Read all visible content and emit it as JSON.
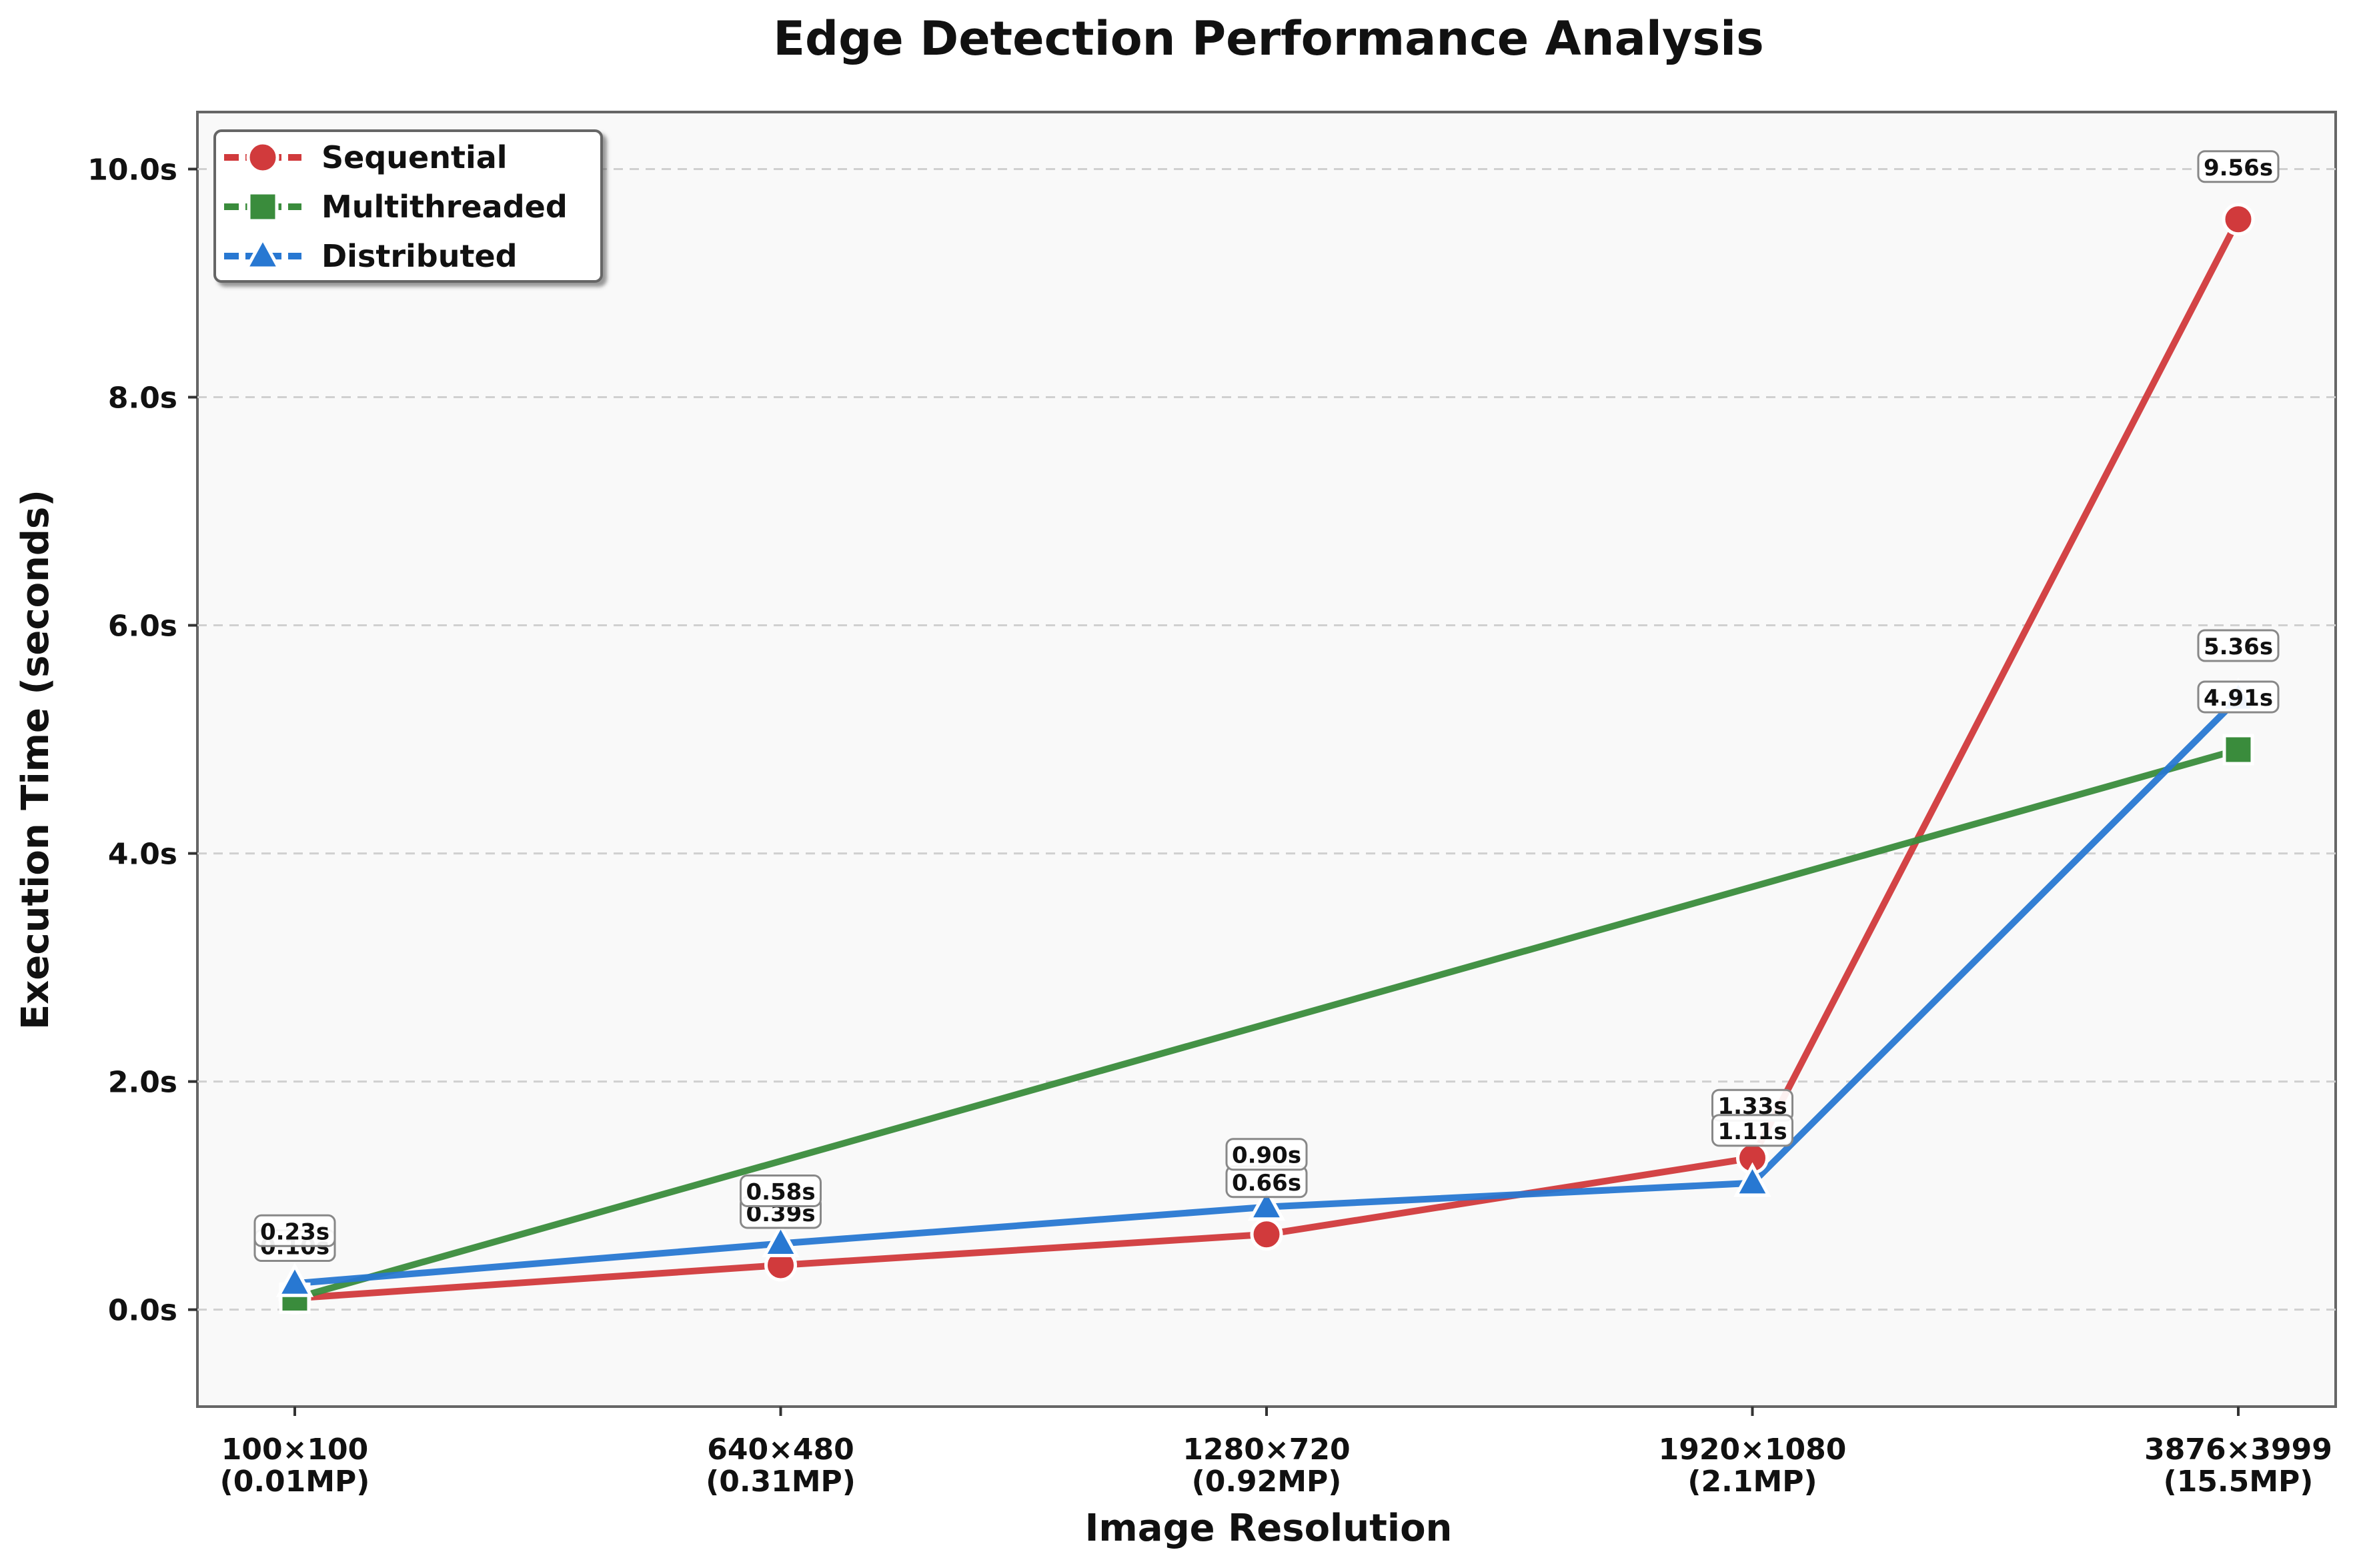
{
  "chart_data": {
    "type": "line",
    "title": "Edge Detection Performance Analysis",
    "xlabel": "Image Resolution",
    "ylabel": "Execution Time (seconds)",
    "categories": [
      [
        "100×100",
        "(0.01MP)"
      ],
      [
        "640×480",
        "(0.31MP)"
      ],
      [
        "1280×720",
        "(0.92MP)"
      ],
      [
        "1920×1080",
        "(2.1MP)"
      ],
      [
        "3876×3999",
        "(15.5MP)"
      ]
    ],
    "ylim": [
      -0.85,
      10.5
    ],
    "yticks": [
      0.0,
      2.0,
      4.0,
      6.0,
      8.0,
      10.0
    ],
    "ytick_labels": [
      "0.0s",
      "2.0s",
      "4.0s",
      "6.0s",
      "8.0s",
      "10.0s"
    ],
    "grid": "horizontal dashed",
    "legend_position": "top-left",
    "series": [
      {
        "name": "Sequential",
        "color": "#d13a3c",
        "marker": "circle",
        "values": [
          0.1,
          0.39,
          0.66,
          1.33,
          9.56
        ],
        "labels": [
          "0.10s",
          "0.39s",
          "0.66s",
          "1.33s",
          "9.56s"
        ]
      },
      {
        "name": "Multithreaded",
        "color": "#3a8c3c",
        "marker": "square",
        "values": [
          0.1,
          null,
          null,
          null,
          4.91
        ],
        "labels": [
          "0.10s",
          null,
          null,
          null,
          "4.91s"
        ]
      },
      {
        "name": "Distributed",
        "color": "#2878d2",
        "marker": "triangle",
        "values": [
          0.23,
          0.58,
          0.9,
          1.11,
          5.36
        ],
        "labels": [
          "0.23s",
          "0.58s",
          "0.90s",
          "1.11s",
          "5.36s"
        ]
      }
    ]
  }
}
